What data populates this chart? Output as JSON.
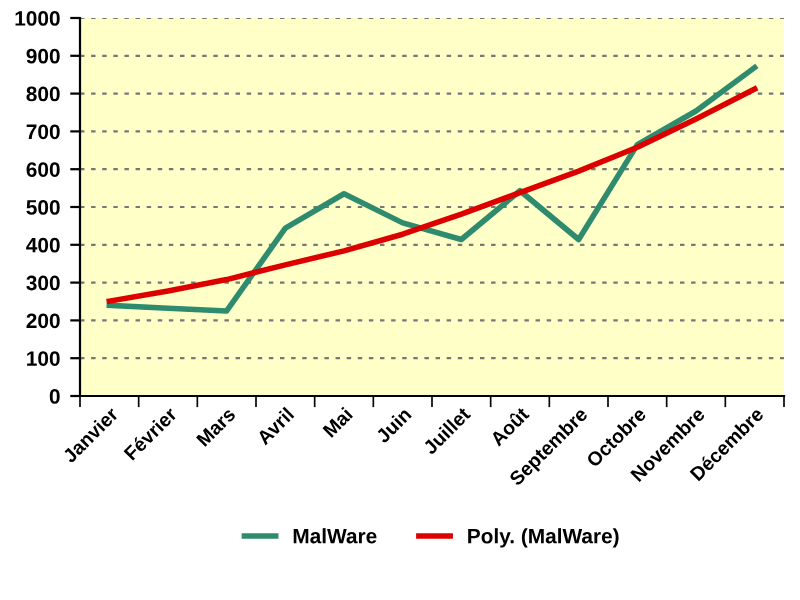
{
  "chart_data": {
    "type": "line",
    "categories": [
      "Janvier",
      "Février",
      "Mars",
      "Avril",
      "Mai",
      "Juin",
      "Juillet",
      "Août",
      "Septembre",
      "Octobre",
      "Novembre",
      "Décembre"
    ],
    "series": [
      {
        "name": "MalWare",
        "color": "#2e8b6e",
        "values": [
          240,
          232,
          225,
          444,
          535,
          458,
          414,
          543,
          414,
          665,
          754,
          869
        ]
      },
      {
        "name": "Poly. (MalWare)",
        "color": "#dd0000",
        "values": [
          251,
          278,
          308,
          347,
          384,
          428,
          481,
          538,
          595,
          658,
          733,
          812
        ]
      }
    ],
    "ylim": [
      0,
      1000
    ],
    "yticks": [
      0,
      100,
      200,
      300,
      400,
      500,
      600,
      700,
      800,
      900,
      1000
    ],
    "grid": "y",
    "legend": "bottom",
    "marker": "none",
    "line_style": "solid"
  }
}
